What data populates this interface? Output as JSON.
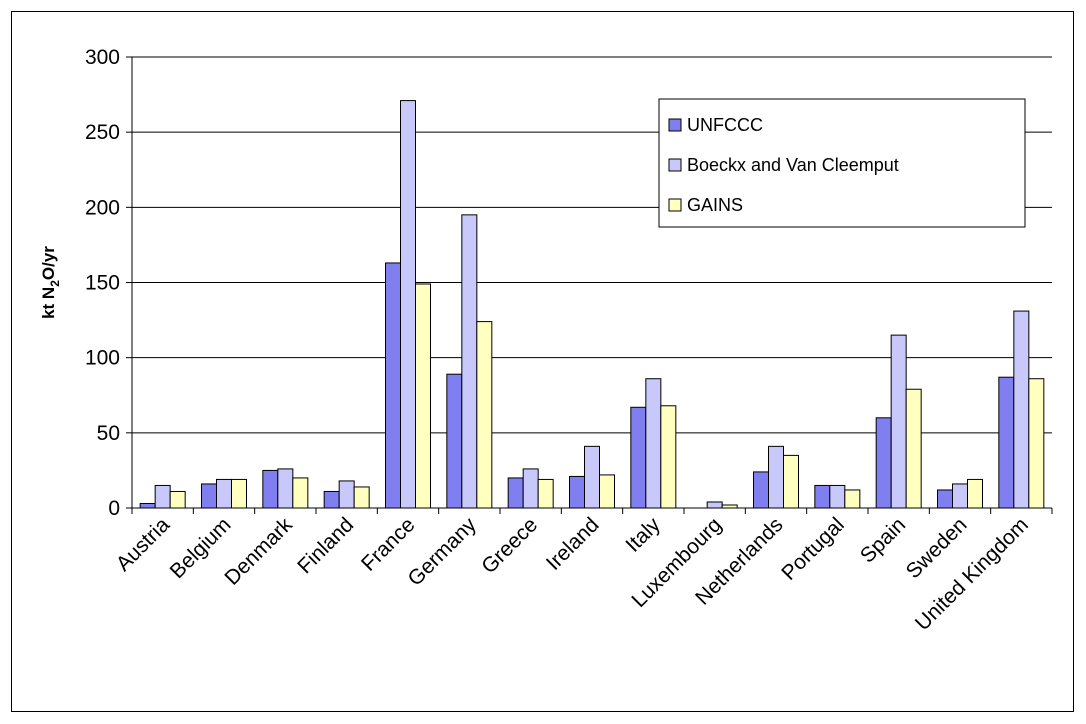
{
  "chart_data": {
    "type": "bar",
    "title": "",
    "xlabel": "",
    "ylabel": {
      "prefix": "kt N",
      "subscript": "2",
      "suffix": "O/yr"
    },
    "ylim": [
      0,
      300
    ],
    "yticks": [
      0,
      50,
      100,
      150,
      200,
      250,
      300
    ],
    "grid": true,
    "legend_position": "top-right",
    "categories": [
      "Austria",
      "Belgium",
      "Denmark",
      "Finland",
      "France",
      "Germany",
      "Greece",
      "Ireland",
      "Italy",
      "Luxembourg",
      "Netherlands",
      "Portugal",
      "Spain",
      "Sweden",
      "United Kingdom"
    ],
    "series": [
      {
        "name": "UNFCCC",
        "color": "#7f7fef",
        "values": [
          3,
          16,
          25,
          11,
          163,
          89,
          20,
          21,
          67,
          0,
          24,
          15,
          60,
          12,
          87
        ]
      },
      {
        "name": "Boeckx and Van Cleemput",
        "color": "#c8c8fa",
        "values": [
          15,
          19,
          26,
          18,
          271,
          195,
          26,
          41,
          86,
          4,
          41,
          15,
          115,
          16,
          131
        ]
      },
      {
        "name": "GAINS",
        "color": "#ffffc0",
        "values": [
          11,
          19,
          20,
          14,
          149,
          124,
          19,
          22,
          68,
          2,
          35,
          12,
          79,
          19,
          86
        ]
      }
    ]
  }
}
